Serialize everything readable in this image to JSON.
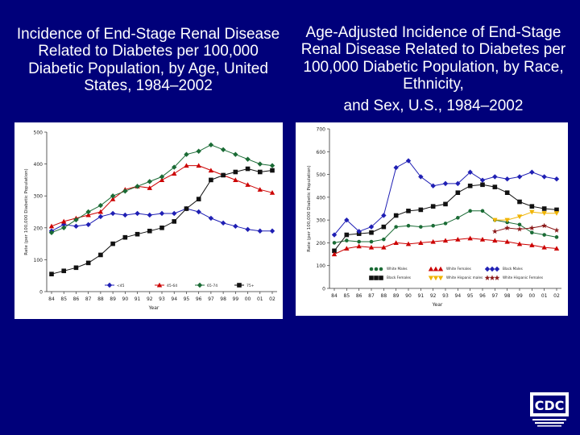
{
  "slide": {
    "background": "#00007a",
    "left_title": "Incidence of End-Stage Renal Disease Related to Diabetes per 100,000 Diabetic Population, by Age, United States, 1984–2002",
    "right_title_line1": "Age-Adjusted Incidence of End-Stage Renal Disease Related to Diabetes per 100,000 Diabetic Population, by Race, Ethnicity,",
    "right_title_line2": "and Sex, U.S., 1984–2002",
    "logo_text": "CDC"
  },
  "chart_data": [
    {
      "type": "line",
      "ylabel": "Rate (per 100,000 Diabetic Population)",
      "xlabel": "Year",
      "x": [
        "84",
        "85",
        "86",
        "87",
        "88",
        "89",
        "90",
        "91",
        "92",
        "93",
        "94",
        "95",
        "96",
        "97",
        "98",
        "99",
        "00",
        "01",
        "02"
      ],
      "ylim": [
        0,
        500
      ],
      "yticks": [
        0,
        100,
        200,
        300,
        400,
        500
      ],
      "grid": false,
      "legend_placement": "bottom",
      "series": [
        {
          "name": "<45",
          "color": "#1f1fb4",
          "marker": "diamond",
          "values": [
            190,
            210,
            205,
            210,
            235,
            245,
            240,
            245,
            240,
            245,
            245,
            260,
            250,
            230,
            215,
            205,
            195,
            190,
            190
          ]
        },
        {
          "name": "45-64",
          "color": "#cc0000",
          "marker": "triangle",
          "values": [
            205,
            220,
            230,
            240,
            250,
            290,
            320,
            330,
            325,
            350,
            370,
            395,
            395,
            380,
            365,
            350,
            335,
            320,
            310
          ]
        },
        {
          "name": "65-74",
          "color": "#1a6b35",
          "marker": "diamond",
          "values": [
            185,
            200,
            225,
            250,
            270,
            300,
            315,
            330,
            345,
            360,
            390,
            430,
            440,
            460,
            445,
            430,
            415,
            400,
            395
          ]
        },
        {
          "name": "75+",
          "color": "#111111",
          "marker": "square",
          "values": [
            55,
            65,
            75,
            90,
            115,
            150,
            170,
            180,
            190,
            200,
            220,
            260,
            290,
            350,
            365,
            375,
            385,
            375,
            380
          ]
        }
      ]
    },
    {
      "type": "line",
      "ylabel": "Rate (per 100,000 Diabetic Population)",
      "xlabel": "Year",
      "x": [
        "84",
        "85",
        "86",
        "87",
        "88",
        "89",
        "90",
        "91",
        "92",
        "93",
        "94",
        "95",
        "96",
        "97",
        "98",
        "99",
        "00",
        "01",
        "02"
      ],
      "ylim": [
        0,
        700
      ],
      "yticks": [
        0,
        100,
        200,
        300,
        400,
        500,
        600,
        700
      ],
      "grid": false,
      "legend_placement": "bottom-left",
      "series": [
        {
          "name": "White Males",
          "color": "#1a6b35",
          "marker": "dot",
          "values": [
            200,
            210,
            205,
            205,
            215,
            270,
            275,
            270,
            275,
            285,
            310,
            340,
            340,
            300,
            290,
            280,
            245,
            235,
            225
          ]
        },
        {
          "name": "Black Females",
          "color": "#111111",
          "marker": "square",
          "values": [
            165,
            235,
            240,
            245,
            270,
            320,
            340,
            345,
            360,
            370,
            420,
            450,
            455,
            445,
            420,
            380,
            360,
            350,
            345
          ]
        },
        {
          "name": "White Females",
          "color": "#cc0000",
          "marker": "triangle",
          "values": [
            150,
            175,
            185,
            180,
            180,
            200,
            195,
            200,
            205,
            210,
            215,
            220,
            215,
            210,
            205,
            195,
            190,
            180,
            175
          ]
        },
        {
          "name": "White Hispanic males",
          "color": "#f0b400",
          "marker": "triangle-down",
          "values": [
            null,
            null,
            null,
            null,
            null,
            null,
            null,
            null,
            null,
            null,
            null,
            null,
            null,
            300,
            300,
            315,
            335,
            330,
            330
          ]
        },
        {
          "name": "Black Males",
          "color": "#1f1fb4",
          "marker": "diamond",
          "values": [
            235,
            300,
            250,
            270,
            320,
            530,
            560,
            490,
            450,
            460,
            460,
            510,
            475,
            490,
            480,
            490,
            510,
            490,
            480
          ]
        },
        {
          "name": "White Hispanic Females",
          "color": "#8b1a1a",
          "marker": "star",
          "values": [
            null,
            null,
            null,
            null,
            null,
            null,
            null,
            null,
            null,
            null,
            null,
            null,
            null,
            250,
            265,
            260,
            265,
            275,
            255
          ]
        }
      ]
    }
  ]
}
